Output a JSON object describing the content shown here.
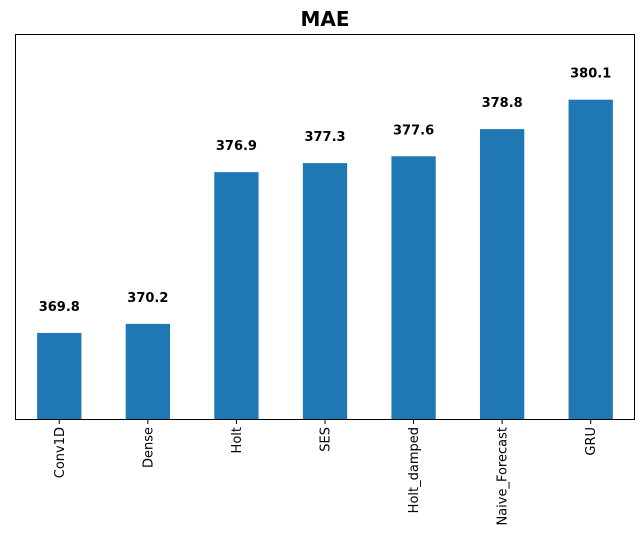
{
  "chart_data": {
    "type": "bar",
    "title": "MAE",
    "xlabel": "",
    "ylabel": "",
    "categories": [
      "Conv1D",
      "Dense",
      "Holt",
      "SES",
      "Holt_damped",
      "Naive_Forecast",
      "GRU"
    ],
    "values": [
      369.8,
      370.2,
      376.9,
      377.3,
      377.6,
      378.8,
      380.1
    ],
    "data_labels": [
      "369.8",
      "370.2",
      "376.9",
      "377.3",
      "377.6",
      "378.8",
      "380.1"
    ],
    "ylim": [
      366.0,
      383.0
    ],
    "bar_color": "#1f77b4",
    "grid": false,
    "legend": "none",
    "y_ticks_visible": false
  }
}
